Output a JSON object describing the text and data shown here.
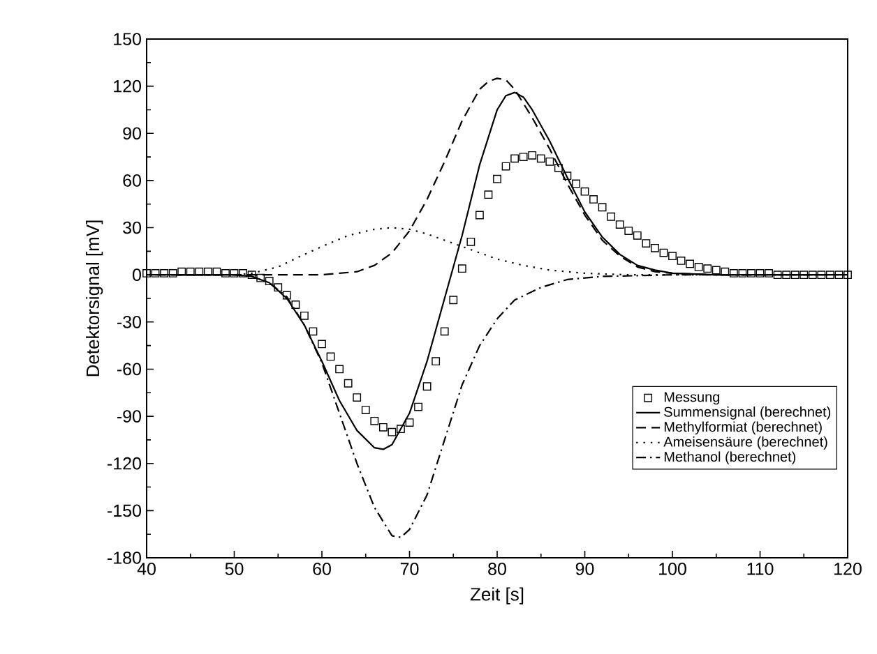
{
  "chart_data": {
    "type": "line",
    "xlabel": "Zeit [s]",
    "ylabel": "Detektorsignal [mV]",
    "xlim": [
      40,
      120
    ],
    "ylim": [
      -180,
      150
    ],
    "xticks": [
      40,
      50,
      60,
      70,
      80,
      90,
      100,
      110,
      120
    ],
    "yticks": [
      -180,
      -150,
      -120,
      -90,
      -60,
      -30,
      0,
      30,
      60,
      90,
      120,
      150
    ],
    "grid": false,
    "legend": "bottom right",
    "series": [
      {
        "name": "Messung",
        "type": "scatter",
        "marker": "square",
        "color": "#000000",
        "x": [
          40,
          41,
          42,
          43,
          44,
          45,
          46,
          47,
          48,
          49,
          50,
          51,
          52,
          53,
          54,
          55,
          56,
          57,
          58,
          59,
          60,
          61,
          62,
          63,
          64,
          65,
          66,
          67,
          68,
          69,
          70,
          71,
          72,
          73,
          74,
          75,
          76,
          77,
          78,
          79,
          80,
          81,
          82,
          83,
          84,
          85,
          86,
          87,
          88,
          89,
          90,
          91,
          92,
          93,
          94,
          95,
          96,
          97,
          98,
          99,
          100,
          101,
          102,
          103,
          104,
          105,
          106,
          107,
          108,
          109,
          110,
          111,
          112,
          113,
          114,
          115,
          116,
          117,
          118,
          119,
          120
        ],
        "values": [
          1,
          1,
          1,
          1,
          2,
          2,
          2,
          2,
          2,
          1,
          1,
          1,
          0,
          -2,
          -4,
          -8,
          -13,
          -19,
          -26,
          -36,
          -44,
          -52,
          -60,
          -69,
          -78,
          -86,
          -93,
          -97,
          -100,
          -98,
          -94,
          -84,
          -71,
          -55,
          -36,
          -16,
          4,
          21,
          38,
          51,
          61,
          69,
          74,
          75,
          76,
          74,
          72,
          68,
          63,
          58,
          53,
          48,
          43,
          37,
          32,
          28,
          25,
          20,
          17,
          14,
          12,
          9,
          7,
          5,
          4,
          3,
          2,
          1,
          1,
          1,
          1,
          1,
          0,
          0,
          0,
          0,
          0,
          0,
          0,
          0,
          0
        ]
      },
      {
        "name": "Summensignal (berechnet)",
        "line_style": "solid",
        "color": "#000000",
        "x": [
          40,
          45,
          50,
          52,
          54,
          56,
          58,
          60,
          62,
          64,
          66,
          67,
          68,
          70,
          72,
          74,
          76,
          78,
          80,
          81,
          82,
          83,
          84,
          86,
          88,
          90,
          92,
          94,
          96,
          98,
          100,
          105,
          110,
          120
        ],
        "values": [
          0,
          0,
          0,
          -1,
          -5,
          -15,
          -32,
          -55,
          -80,
          -99,
          -110,
          -111,
          -108,
          -88,
          -55,
          -15,
          25,
          70,
          105,
          114,
          116,
          113,
          105,
          85,
          62,
          40,
          24,
          13,
          6,
          3,
          1,
          0,
          0,
          0
        ]
      },
      {
        "name": "Methylformiat (berechnet)",
        "line_style": "dashed",
        "color": "#000000",
        "x": [
          41,
          50,
          60,
          62,
          64,
          66,
          68,
          70,
          72,
          74,
          76,
          78,
          79,
          80,
          81,
          82,
          84,
          86,
          88,
          90,
          92,
          94,
          96,
          98,
          100,
          105,
          119
        ],
        "values": [
          0,
          0,
          0,
          1,
          2,
          6,
          14,
          28,
          48,
          72,
          98,
          118,
          123,
          125,
          124,
          118,
          100,
          80,
          58,
          38,
          22,
          12,
          5,
          2,
          1,
          0,
          0
        ]
      },
      {
        "name": "Ameisensäure (berechnet)",
        "line_style": "dotted",
        "color": "#000000",
        "x": [
          42,
          50,
          52,
          55,
          58,
          60,
          63,
          66,
          68,
          70,
          72,
          75,
          78,
          80,
          83,
          86,
          90,
          95,
          118
        ],
        "values": [
          0,
          0,
          1,
          5,
          13,
          18,
          25,
          29,
          30,
          29,
          26,
          20,
          14,
          10,
          6,
          3,
          1,
          0,
          0
        ]
      },
      {
        "name": "Methanol (berechnet)",
        "line_style": "dashdot",
        "color": "#000000",
        "x": [
          43,
          50,
          52,
          54,
          56,
          58,
          60,
          62,
          64,
          66,
          68,
          69,
          70,
          72,
          74,
          76,
          78,
          80,
          82,
          85,
          88,
          92,
          100,
          117
        ],
        "values": [
          0,
          0,
          -1,
          -5,
          -14,
          -32,
          -56,
          -88,
          -120,
          -148,
          -166,
          -167,
          -162,
          -140,
          -105,
          -70,
          -45,
          -28,
          -16,
          -8,
          -3,
          -1,
          0,
          0
        ]
      }
    ]
  }
}
